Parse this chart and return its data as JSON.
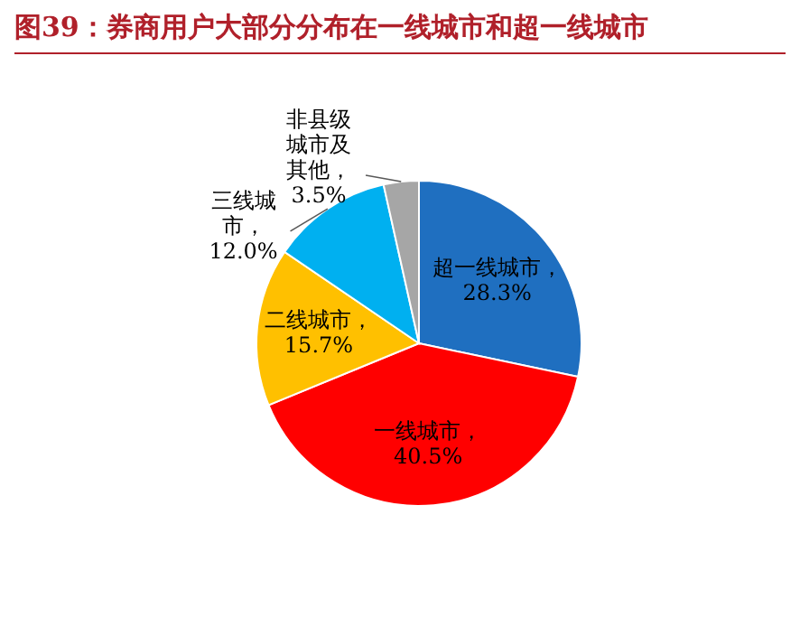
{
  "chart_data": {
    "type": "pie",
    "title": "图39：券商用户大部分分布在一线城市和超一线城市",
    "categories": [
      "超一线城市",
      "一线城市",
      "二线城市",
      "三线城市",
      "非县级城市及其他"
    ],
    "values": [
      28.3,
      40.5,
      15.7,
      12.0,
      3.5
    ],
    "value_labels": [
      "，28.3%",
      "，40.5%",
      "，15.7%",
      "，12.0%",
      "，3.5%"
    ],
    "colors": [
      "#1f6fc0",
      "#ff0000",
      "#ffc000",
      "#00b0f0",
      "#a6a6a6"
    ]
  }
}
